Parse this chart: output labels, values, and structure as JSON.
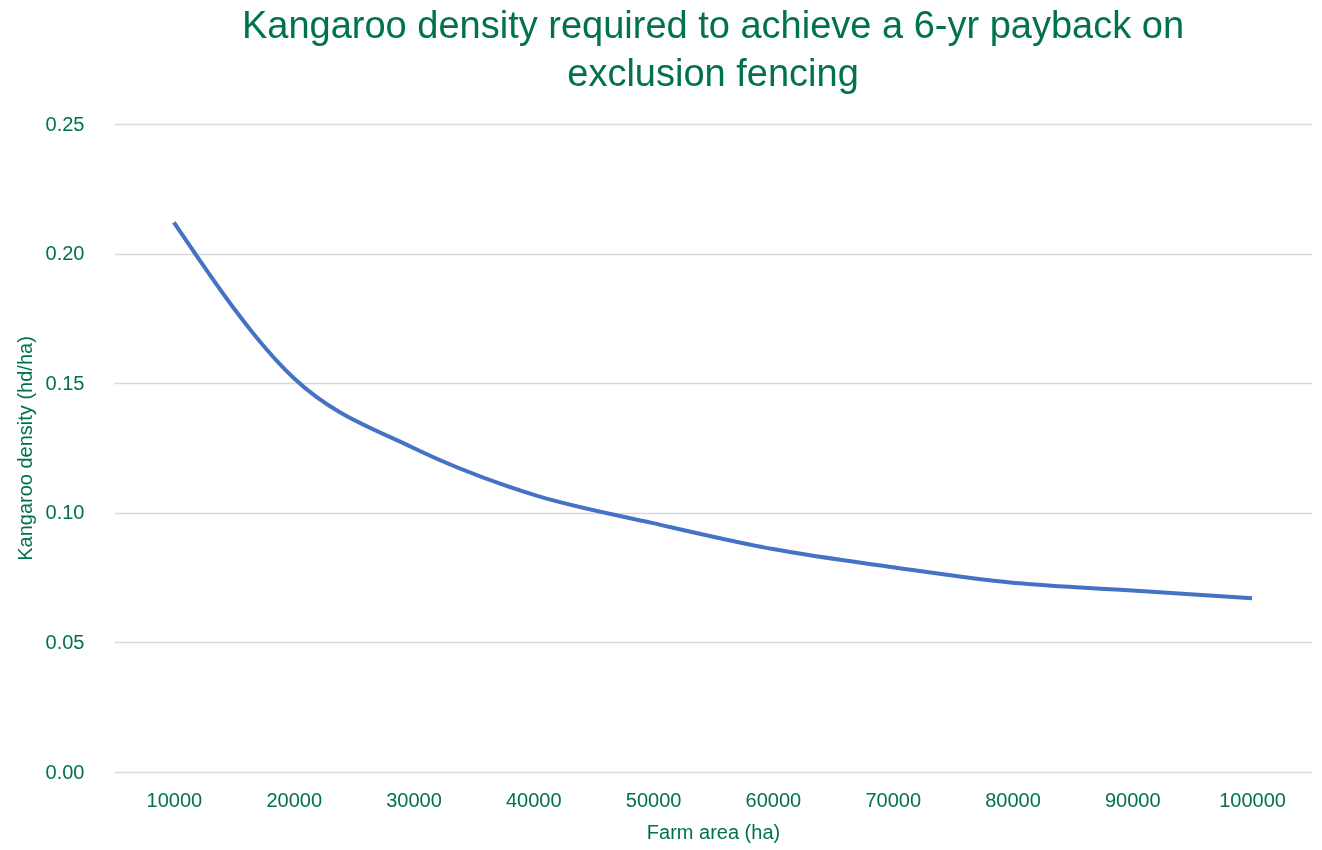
{
  "chart_data": {
    "type": "line",
    "title": "Kangaroo density required to achieve a 6-yr payback on exclusion fencing",
    "xlabel": "Farm area (ha)",
    "ylabel": "Kangaroo density (hd/ha)",
    "categories": [
      "10000",
      "20000",
      "30000",
      "40000",
      "50000",
      "60000",
      "70000",
      "80000",
      "90000",
      "100000"
    ],
    "series": [
      {
        "color": "#4472c4",
        "values": [
          0.212,
          0.152,
          0.125,
          0.107,
          0.096,
          0.086,
          0.079,
          0.073,
          0.07,
          0.067
        ]
      }
    ],
    "ylim": [
      0,
      0.25
    ],
    "yticks": [
      {
        "value": 0,
        "label": "0.00"
      },
      {
        "value": 0.05,
        "label": "0.05"
      },
      {
        "value": 0.1,
        "label": "0.10"
      },
      {
        "value": 0.15,
        "label": "0.15"
      },
      {
        "value": 0.2,
        "label": "0.20"
      },
      {
        "value": 0.25,
        "label": "0.25"
      }
    ],
    "grid": "y",
    "marker": "none",
    "line_style": "solid"
  }
}
